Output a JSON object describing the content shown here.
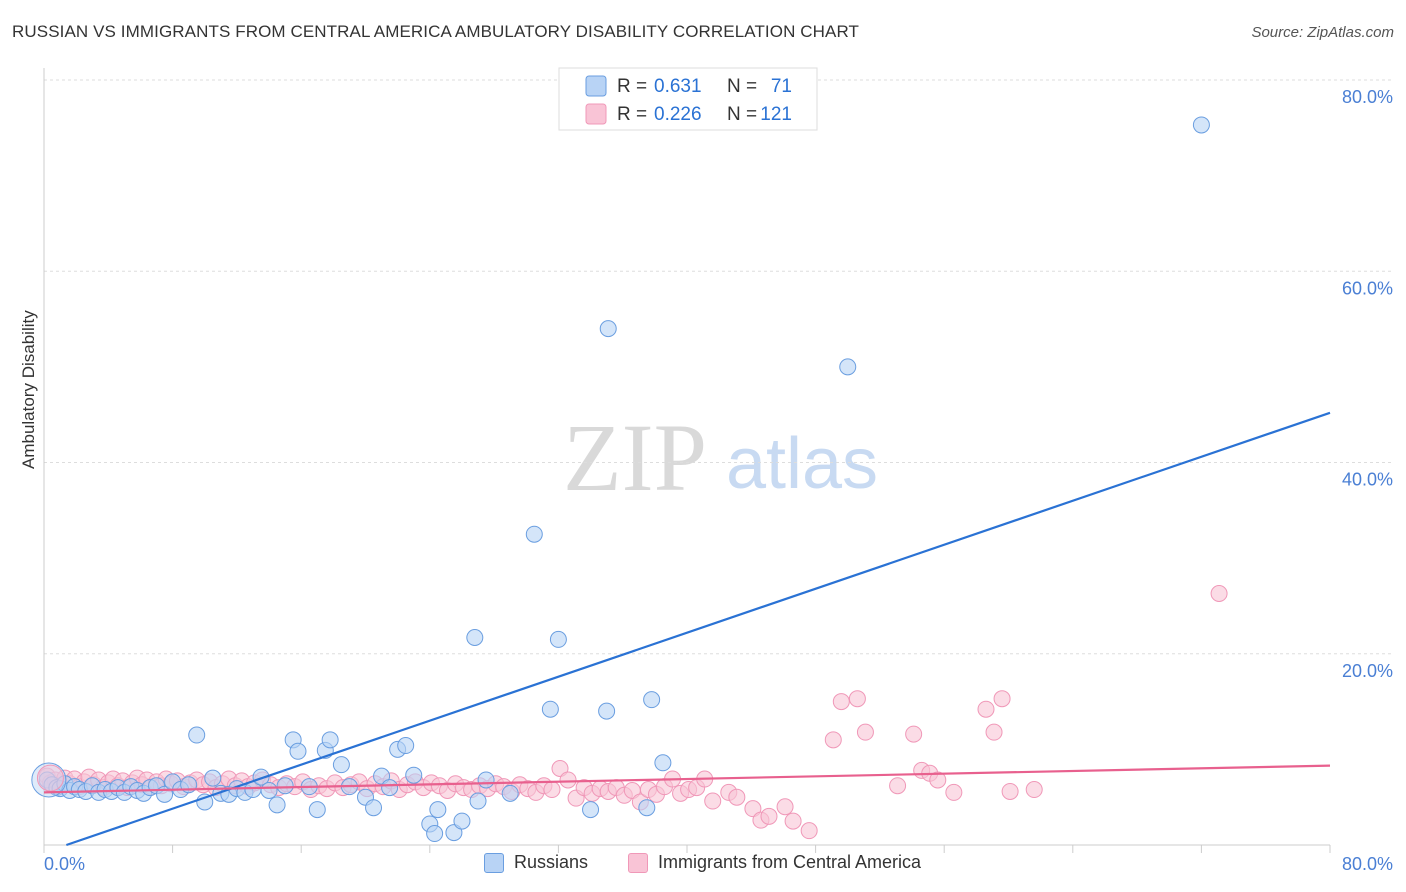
{
  "title": "RUSSIAN VS IMMIGRANTS FROM CENTRAL AMERICA AMBULATORY DISABILITY CORRELATION CHART",
  "source": "Source: ZipAtlas.com",
  "watermark": {
    "zip": "ZIP",
    "atlas": "atlas"
  },
  "chart_data": {
    "type": "scatter",
    "xlabel": "",
    "ylabel": "Ambulatory Disability",
    "xlim": [
      0,
      80
    ],
    "ylim": [
      0,
      80
    ],
    "x_tick_labels": [
      "0.0%",
      "80.0%"
    ],
    "y_ticks": [
      20,
      40,
      60,
      80
    ],
    "y_tick_labels": [
      "20.0%",
      "40.0%",
      "60.0%",
      "80.0%"
    ],
    "grid": true,
    "legend_position": "top-center",
    "series": [
      {
        "name": "Russians",
        "color": "#6a9ee0",
        "fill": "#b8d3f5",
        "line_color": "#2a72d4",
        "R": "0.631",
        "N": "71",
        "trend": {
          "x": [
            0,
            80
          ],
          "y": [
            -0.8,
            45.2
          ]
        },
        "points": [
          [
            0.2,
            6.8
          ],
          [
            0.5,
            6.3
          ],
          [
            0.8,
            6.0
          ],
          [
            1.0,
            5.9
          ],
          [
            1.3,
            6.4
          ],
          [
            1.6,
            5.7
          ],
          [
            1.9,
            6.1
          ],
          [
            2.2,
            5.8
          ],
          [
            2.6,
            5.6
          ],
          [
            3.0,
            6.2
          ],
          [
            3.4,
            5.5
          ],
          [
            3.8,
            5.8
          ],
          [
            4.2,
            5.6
          ],
          [
            4.6,
            6.0
          ],
          [
            5.0,
            5.5
          ],
          [
            5.4,
            6.1
          ],
          [
            5.8,
            5.7
          ],
          [
            6.2,
            5.4
          ],
          [
            6.6,
            6.0
          ],
          [
            7.0,
            6.2
          ],
          [
            7.5,
            5.3
          ],
          [
            8.0,
            6.6
          ],
          [
            8.5,
            5.8
          ],
          [
            9.0,
            6.3
          ],
          [
            9.5,
            11.5
          ],
          [
            10.0,
            4.5
          ],
          [
            10.5,
            7.0
          ],
          [
            11.0,
            5.4
          ],
          [
            11.5,
            5.3
          ],
          [
            12.0,
            5.9
          ],
          [
            12.5,
            5.5
          ],
          [
            13.0,
            5.8
          ],
          [
            13.5,
            7.1
          ],
          [
            14.0,
            5.7
          ],
          [
            14.5,
            4.2
          ],
          [
            15.0,
            6.2
          ],
          [
            15.5,
            11.0
          ],
          [
            15.8,
            9.8
          ],
          [
            16.5,
            6.1
          ],
          [
            17.0,
            3.7
          ],
          [
            17.5,
            9.9
          ],
          [
            17.8,
            11.0
          ],
          [
            18.5,
            8.4
          ],
          [
            19.0,
            6.1
          ],
          [
            20.0,
            5.0
          ],
          [
            20.5,
            3.9
          ],
          [
            21.0,
            7.2
          ],
          [
            21.5,
            6.0
          ],
          [
            22.0,
            10.0
          ],
          [
            22.5,
            10.4
          ],
          [
            23.0,
            7.3
          ],
          [
            24.0,
            2.2
          ],
          [
            24.5,
            3.7
          ],
          [
            24.3,
            1.2
          ],
          [
            25.5,
            1.3
          ],
          [
            26.0,
            2.5
          ],
          [
            27.0,
            4.6
          ],
          [
            27.5,
            6.8
          ],
          [
            29.0,
            5.4
          ],
          [
            30.5,
            32.5
          ],
          [
            32.0,
            21.5
          ],
          [
            26.8,
            21.7
          ],
          [
            34.0,
            3.7
          ],
          [
            35.0,
            14.0
          ],
          [
            37.5,
            3.9
          ],
          [
            37.8,
            15.2
          ],
          [
            38.5,
            8.6
          ],
          [
            35.1,
            54.0
          ],
          [
            50.0,
            50.0
          ],
          [
            72.0,
            75.3
          ],
          [
            31.5,
            14.2
          ]
        ]
      },
      {
        "name": "Immigrants from Central America",
        "color": "#f098b8",
        "fill": "#f9c4d6",
        "line_color": "#e8608e",
        "R": "0.226",
        "N": "121",
        "trend": {
          "x": [
            0,
            80
          ],
          "y": [
            5.5,
            8.3
          ]
        },
        "points": [
          [
            0.2,
            7.2
          ],
          [
            0.4,
            6.5
          ],
          [
            0.7,
            6.8
          ],
          [
            1.0,
            6.2
          ],
          [
            1.3,
            7.0
          ],
          [
            1.6,
            6.4
          ],
          [
            1.9,
            6.9
          ],
          [
            2.2,
            6.1
          ],
          [
            2.5,
            6.6
          ],
          [
            2.8,
            7.1
          ],
          [
            3.1,
            6.3
          ],
          [
            3.4,
            6.8
          ],
          [
            3.7,
            6.0
          ],
          [
            4.0,
            6.5
          ],
          [
            4.3,
            6.9
          ],
          [
            4.6,
            6.2
          ],
          [
            4.9,
            6.7
          ],
          [
            5.2,
            6.0
          ],
          [
            5.5,
            6.5
          ],
          [
            5.8,
            7.0
          ],
          [
            6.1,
            6.3
          ],
          [
            6.4,
            6.8
          ],
          [
            6.7,
            6.1
          ],
          [
            7.0,
            6.6
          ],
          [
            7.3,
            6.2
          ],
          [
            7.6,
            6.9
          ],
          [
            7.9,
            6.4
          ],
          [
            8.3,
            6.7
          ],
          [
            8.7,
            6.1
          ],
          [
            9.1,
            6.5
          ],
          [
            9.5,
            6.8
          ],
          [
            9.9,
            6.3
          ],
          [
            10.3,
            6.6
          ],
          [
            10.7,
            6.0
          ],
          [
            11.1,
            6.4
          ],
          [
            11.5,
            6.9
          ],
          [
            11.9,
            6.2
          ],
          [
            12.3,
            6.7
          ],
          [
            12.7,
            6.1
          ],
          [
            13.1,
            6.5
          ],
          [
            13.6,
            6.8
          ],
          [
            14.1,
            6.3
          ],
          [
            14.6,
            6.0
          ],
          [
            15.1,
            6.4
          ],
          [
            15.6,
            6.1
          ],
          [
            16.1,
            6.6
          ],
          [
            16.6,
            5.8
          ],
          [
            17.1,
            6.2
          ],
          [
            17.6,
            5.9
          ],
          [
            18.1,
            6.5
          ],
          [
            18.6,
            6.0
          ],
          [
            19.1,
            6.3
          ],
          [
            19.6,
            6.6
          ],
          [
            20.1,
            5.9
          ],
          [
            20.6,
            6.4
          ],
          [
            21.1,
            6.1
          ],
          [
            21.6,
            6.7
          ],
          [
            22.1,
            5.8
          ],
          [
            22.6,
            6.3
          ],
          [
            23.1,
            6.6
          ],
          [
            23.6,
            6.0
          ],
          [
            24.1,
            6.5
          ],
          [
            24.6,
            6.2
          ],
          [
            25.1,
            5.7
          ],
          [
            25.6,
            6.4
          ],
          [
            26.1,
            6.0
          ],
          [
            26.6,
            5.8
          ],
          [
            27.1,
            6.2
          ],
          [
            27.6,
            5.9
          ],
          [
            28.1,
            6.4
          ],
          [
            28.6,
            6.1
          ],
          [
            29.1,
            5.6
          ],
          [
            29.6,
            6.3
          ],
          [
            30.1,
            5.9
          ],
          [
            30.6,
            5.5
          ],
          [
            31.1,
            6.2
          ],
          [
            31.6,
            5.8
          ],
          [
            32.1,
            8.0
          ],
          [
            32.6,
            6.8
          ],
          [
            33.1,
            4.9
          ],
          [
            33.6,
            6.0
          ],
          [
            34.1,
            5.4
          ],
          [
            34.6,
            5.9
          ],
          [
            35.1,
            5.6
          ],
          [
            35.6,
            6.0
          ],
          [
            36.1,
            5.2
          ],
          [
            36.6,
            5.7
          ],
          [
            37.1,
            4.5
          ],
          [
            37.6,
            5.8
          ],
          [
            38.1,
            5.3
          ],
          [
            38.6,
            6.1
          ],
          [
            39.1,
            6.9
          ],
          [
            39.6,
            5.4
          ],
          [
            40.1,
            5.8
          ],
          [
            40.6,
            6.0
          ],
          [
            41.1,
            6.9
          ],
          [
            41.6,
            4.6
          ],
          [
            42.6,
            5.5
          ],
          [
            43.1,
            5.0
          ],
          [
            44.1,
            3.8
          ],
          [
            44.6,
            2.6
          ],
          [
            45.1,
            3.0
          ],
          [
            46.1,
            4.0
          ],
          [
            46.6,
            2.5
          ],
          [
            47.6,
            1.5
          ],
          [
            49.1,
            11.0
          ],
          [
            49.6,
            15.0
          ],
          [
            50.6,
            15.3
          ],
          [
            51.1,
            11.8
          ],
          [
            53.1,
            6.2
          ],
          [
            54.1,
            11.6
          ],
          [
            54.6,
            7.8
          ],
          [
            55.1,
            7.5
          ],
          [
            55.6,
            6.8
          ],
          [
            56.6,
            5.5
          ],
          [
            58.6,
            14.2
          ],
          [
            59.1,
            11.8
          ],
          [
            59.6,
            15.3
          ],
          [
            60.1,
            5.6
          ],
          [
            61.6,
            5.8
          ],
          [
            73.1,
            26.3
          ]
        ]
      }
    ]
  }
}
